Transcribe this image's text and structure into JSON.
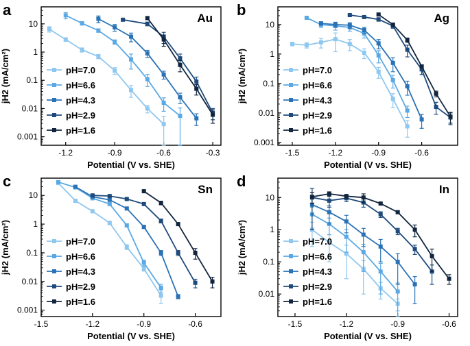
{
  "chart_data": [
    {
      "panel_letter": "a",
      "metal": "Au",
      "type": "line",
      "xlabel": "Potential (V vs. SHE)",
      "ylabel": "jH2 (mA/cm²)",
      "xlim": [
        -1.35,
        -0.25
      ],
      "ylim": [
        0.0005,
        40
      ],
      "yscale": "log",
      "xticks": [
        -1.2,
        -0.9,
        -0.6,
        -0.3
      ],
      "xtick_labels": [
        "-1.2",
        "-0.9",
        "-0.6",
        "-0.3"
      ],
      "yticks": [
        0.001,
        0.01,
        0.1,
        1,
        10
      ],
      "ytick_labels": [
        "0.001",
        "0.01",
        "0.1",
        "1",
        "10"
      ],
      "legend_position": "bottom-left",
      "series": [
        {
          "name": "pH=7.0",
          "color": "#8ec7ef",
          "x": [
            -1.3,
            -1.2,
            -1.1,
            -1.0,
            -0.9,
            -0.8,
            -0.7,
            -0.6
          ],
          "y": [
            6.5,
            2.8,
            1.2,
            0.7,
            0.22,
            0.045,
            0.01,
            0.0028
          ],
          "err": [
            1.4,
            0.4,
            0.2,
            0.12,
            0.06,
            0.02,
            0.003,
            0.0025
          ]
        },
        {
          "name": "pH=6.6",
          "color": "#5aa8e4",
          "x": [
            -1.2,
            -1.1,
            -1.0,
            -0.9,
            -0.8,
            -0.7,
            -0.6,
            -0.5
          ],
          "y": [
            20,
            10.5,
            5.8,
            2.3,
            0.55,
            0.11,
            0.016,
            0.0055
          ],
          "err": [
            5,
            1.5,
            0.8,
            0.4,
            0.3,
            0.05,
            0.008,
            0.005
          ]
        },
        {
          "name": "pH=4.3",
          "color": "#2a72b6",
          "x": [
            -1.0,
            -0.9,
            -0.8,
            -0.7,
            -0.6,
            -0.5,
            -0.4
          ],
          "y": [
            15,
            7.5,
            3.5,
            0.9,
            0.16,
            0.025,
            0.0045
          ],
          "err": [
            4,
            2,
            1.2,
            0.25,
            0.05,
            0.01,
            0.002
          ]
        },
        {
          "name": "pH=2.9",
          "color": "#1d4a7a",
          "x": [
            -0.85,
            -0.7,
            -0.6,
            -0.5,
            -0.4,
            -0.3
          ],
          "y": [
            14,
            10,
            3.5,
            0.6,
            0.09,
            0.007
          ],
          "err": [
            1.5,
            1.5,
            1.5,
            0.25,
            0.04,
            0.003
          ]
        },
        {
          "name": "pH=1.6",
          "color": "#12253e",
          "x": [
            -0.7,
            -0.6,
            -0.5,
            -0.4,
            -0.3
          ],
          "y": [
            16,
            2.8,
            0.35,
            0.05,
            0.006
          ],
          "err": [
            2,
            1.2,
            0.15,
            0.02,
            0.003
          ]
        }
      ]
    },
    {
      "panel_letter": "b",
      "metal": "Ag",
      "type": "line",
      "xlabel": "Potential (V vs. SHE)",
      "ylabel": "jH2 (mA/cm²)",
      "xlim": [
        -1.6,
        -0.35
      ],
      "ylim": [
        0.0008,
        40
      ],
      "yscale": "log",
      "xticks": [
        -1.5,
        -1.2,
        -0.9,
        -0.6
      ],
      "xtick_labels": [
        "-1.5",
        "-1.2",
        "-0.9",
        "-0.6"
      ],
      "yticks": [
        0.001,
        0.01,
        0.1,
        1,
        10
      ],
      "ytick_labels": [
        "0.001",
        "0.01",
        "0.1",
        "1",
        "10"
      ],
      "legend_position": "bottom-left",
      "series": [
        {
          "name": "pH=7.0",
          "color": "#8ec7ef",
          "x": [
            -1.5,
            -1.4,
            -1.3,
            -1.2,
            -1.1,
            -1.0,
            -0.9,
            -0.8,
            -0.7
          ],
          "y": [
            2.2,
            2.0,
            2.5,
            3.2,
            2.2,
            1.1,
            0.25,
            0.03,
            0.0035
          ],
          "err": [
            0.3,
            0.4,
            0.9,
            2.0,
            0.9,
            0.4,
            0.1,
            0.015,
            0.002
          ]
        },
        {
          "name": "pH=6.6",
          "color": "#5aa8e4",
          "x": [
            -1.4,
            -1.3,
            -1.2,
            -1.1,
            -1.0,
            -0.9,
            -0.8,
            -0.7
          ],
          "y": [
            17,
            10,
            9,
            8,
            5,
            0.9,
            0.13,
            0.012
          ],
          "err": [
            1,
            2,
            2.5,
            2,
            1.5,
            0.4,
            0.06,
            0.005
          ]
        },
        {
          "name": "pH=4.3",
          "color": "#2a72b6",
          "x": [
            -1.3,
            -1.2,
            -1.1,
            -1.0,
            -0.9,
            -0.8,
            -0.7,
            -0.6
          ],
          "y": [
            11,
            10,
            9.5,
            6.5,
            2.3,
            0.5,
            0.08,
            0.006
          ],
          "err": [
            1.5,
            2,
            2,
            1.5,
            0.8,
            0.25,
            0.04,
            0.003
          ]
        },
        {
          "name": "pH=2.9",
          "color": "#1d4a7a",
          "x": [
            -1.1,
            -1.0,
            -0.9,
            -0.8,
            -0.7,
            -0.6,
            -0.5,
            -0.4
          ],
          "y": [
            21,
            18,
            15,
            9,
            1.4,
            0.3,
            0.016,
            0.007
          ],
          "err": [
            1,
            1,
            2,
            1.5,
            0.6,
            0.1,
            0.007,
            0.003
          ]
        },
        {
          "name": "pH=1.6",
          "color": "#12253e",
          "x": [
            -0.9,
            -0.8,
            -0.7,
            -0.6,
            -0.5,
            -0.4
          ],
          "y": [
            22,
            10,
            3,
            0.38,
            0.045,
            0.0075
          ],
          "err": [
            1,
            1,
            0.5,
            0.05,
            0.01,
            0.003
          ]
        }
      ]
    },
    {
      "panel_letter": "c",
      "metal": "Sn",
      "type": "line",
      "xlabel": "Potential (V vs. SHE)",
      "ylabel": "jH2 (mA/cm²)",
      "xlim": [
        -1.5,
        -0.45
      ],
      "ylim": [
        0.0006,
        40
      ],
      "yscale": "log",
      "xticks": [
        -1.5,
        -1.2,
        -0.9,
        -0.6
      ],
      "xtick_labels": [
        "-1.5",
        "-1.2",
        "-0.9",
        "-0.6"
      ],
      "yticks": [
        0.001,
        0.01,
        0.1,
        1,
        10
      ],
      "ytick_labels": [
        "0.001",
        "0.01",
        "0.1",
        "1",
        "10"
      ],
      "legend_position": "bottom-left",
      "series": [
        {
          "name": "pH=7.0",
          "color": "#8ec7ef",
          "x": [
            -1.4,
            -1.3,
            -1.2,
            -1.1,
            -1.0,
            -0.9,
            -0.8
          ],
          "y": [
            27,
            6.5,
            2.8,
            1.1,
            0.16,
            0.028,
            0.0032
          ],
          "err": [
            3,
            0.5,
            0.3,
            0.15,
            0.03,
            0.005,
            0.0015
          ]
        },
        {
          "name": "pH=6.6",
          "color": "#5aa8e4",
          "x": [
            -1.4,
            -1.3,
            -1.2,
            -1.1,
            -1.0,
            -0.9,
            -0.8
          ],
          "y": [
            29,
            19,
            8,
            5,
            0.9,
            0.045,
            0.006
          ],
          "err": [
            3,
            2,
            1,
            0.5,
            0.1,
            0.01,
            0.002
          ]
        },
        {
          "name": "pH=4.3",
          "color": "#2a72b6",
          "x": [
            -1.3,
            -1.2,
            -1.1,
            -1.0,
            -0.9,
            -0.8,
            -0.7
          ],
          "y": [
            20,
            9,
            7,
            3.5,
            0.8,
            0.1,
            0.003
          ],
          "err": [
            2,
            1,
            0.5,
            0.3,
            0.1,
            0.02,
            0.0005
          ]
        },
        {
          "name": "pH=2.9",
          "color": "#1d4a7a",
          "x": [
            -1.2,
            -1.1,
            -1.0,
            -0.9,
            -0.8,
            -0.7,
            -0.6
          ],
          "y": [
            10,
            9.5,
            7.5,
            5,
            1.3,
            0.1,
            0.009
          ],
          "err": [
            1,
            1,
            0.5,
            0.5,
            0.2,
            0.02,
            0.003
          ]
        },
        {
          "name": "pH=1.6",
          "color": "#12253e",
          "x": [
            -0.9,
            -0.8,
            -0.7,
            -0.6,
            -0.5
          ],
          "y": [
            14,
            5.5,
            1.0,
            0.1,
            0.01
          ],
          "err": [
            1,
            0.8,
            0.1,
            0.04,
            0.004
          ]
        }
      ]
    },
    {
      "panel_letter": "d",
      "metal": "In",
      "type": "line",
      "xlabel": "Potential (V vs. SHE)",
      "ylabel": "jH2 (mA/cm²)",
      "xlim": [
        -1.6,
        -0.55
      ],
      "ylim": [
        0.002,
        40
      ],
      "yscale": "log",
      "xticks": [
        -1.5,
        -1.2,
        -0.9,
        -0.6
      ],
      "xtick_labels": [
        "-1.5",
        "-1.2",
        "-0.9",
        "-0.6"
      ],
      "yticks": [
        0.01,
        0.1,
        1,
        10
      ],
      "ytick_labels": [
        "0.01",
        "0.1",
        "1",
        "10"
      ],
      "legend_position": "bottom-left",
      "series": [
        {
          "name": "pH=7.0",
          "color": "#8ec7ef",
          "x": [
            -1.4,
            -1.3,
            -1.2,
            -1.1,
            -1.0,
            -0.9
          ],
          "y": [
            1.0,
            0.4,
            0.18,
            0.06,
            0.015,
            0.005
          ],
          "err": [
            0.7,
            0.3,
            0.15,
            0.05,
            0.008,
            0.002
          ]
        },
        {
          "name": "pH=6.6",
          "color": "#5aa8e4",
          "x": [
            -1.4,
            -1.3,
            -1.2,
            -1.1,
            -1.0,
            -0.9
          ],
          "y": [
            3.0,
            1.5,
            0.6,
            0.2,
            0.05,
            0.012
          ],
          "err": [
            2,
            0.8,
            0.4,
            0.15,
            0.04,
            0.01
          ]
        },
        {
          "name": "pH=4.3",
          "color": "#2a72b6",
          "x": [
            -1.4,
            -1.3,
            -1.2,
            -1.1,
            -1.0,
            -0.9,
            -0.8
          ],
          "y": [
            6,
            3.5,
            1.8,
            0.7,
            0.3,
            0.1,
            0.02
          ],
          "err": [
            3,
            2,
            1,
            0.4,
            0.2,
            0.08,
            0.015
          ]
        },
        {
          "name": "pH=2.9",
          "color": "#1d4a7a",
          "x": [
            -1.4,
            -1.3,
            -1.2,
            -1.1,
            -1.0,
            -0.9,
            -0.8,
            -0.7
          ],
          "y": [
            10,
            8,
            9.5,
            7,
            3,
            0.9,
            0.25,
            0.05
          ],
          "err": [
            9,
            3,
            2,
            2,
            0.6,
            0.2,
            0.08,
            0.03
          ]
        },
        {
          "name": "pH=1.6",
          "color": "#12253e",
          "x": [
            -1.4,
            -1.3,
            -1.2,
            -1.1,
            -1.0,
            -0.9,
            -0.8,
            -0.7,
            -0.6
          ],
          "y": [
            10.5,
            13,
            11,
            10,
            6.5,
            3.5,
            1.0,
            0.15,
            0.03
          ],
          "err": [
            4,
            2,
            1.5,
            3,
            0.5,
            0.3,
            0.4,
            0.1,
            0.01
          ]
        }
      ]
    }
  ]
}
